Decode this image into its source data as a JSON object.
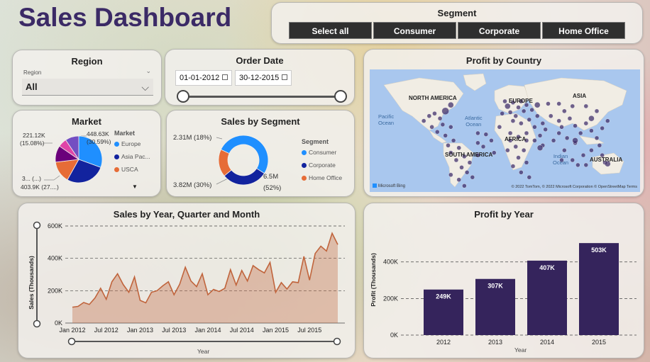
{
  "title": "Sales Dashboard",
  "segment_slicer": {
    "title": "Segment",
    "options": [
      "Select all",
      "Consumer",
      "Corporate",
      "Home Office"
    ]
  },
  "region": {
    "title": "Region",
    "small_label": "Region",
    "value": "All"
  },
  "order_date": {
    "title": "Order Date",
    "start": "01-01-2012",
    "end": "30-12-2015"
  },
  "market": {
    "title": "Market",
    "legend_title": "Market",
    "legend": [
      {
        "label": "Europe",
        "color": "#1f8fff"
      },
      {
        "label": "Asia Pac...",
        "color": "#12239e"
      },
      {
        "label": "USCA",
        "color": "#e66c37"
      }
    ],
    "labels": {
      "top_left": "221.12K",
      "top_left_pct": "(15.08%)",
      "top_right": "448.63K",
      "top_right_pct": "(30.59%)",
      "bottom_left_1": "3... (...)",
      "bottom_left_2": "403.9K (27....)"
    },
    "slices": [
      {
        "name": "Europe",
        "pct": 30.59,
        "color": "#1f8fff"
      },
      {
        "name": "Asia Pac...",
        "pct": 27.5,
        "color": "#12239e"
      },
      {
        "name": "USCA",
        "pct": 15.0,
        "color": "#e66c37"
      },
      {
        "name": "",
        "pct": 11.5,
        "color": "#6b007b"
      },
      {
        "name": "",
        "pct": 6.0,
        "color": "#e044a7"
      },
      {
        "name": "",
        "pct": 9.41,
        "color": "#744ec2"
      }
    ]
  },
  "sales_by_segment": {
    "title": "Sales by Segment",
    "legend_title": "Segment",
    "legend": [
      {
        "label": "Consumer",
        "color": "#1f8fff"
      },
      {
        "label": "Corporate",
        "color": "#12239e"
      },
      {
        "label": "Home Office",
        "color": "#e66c37"
      }
    ],
    "labels": {
      "top": "2.31M (18%)",
      "bottom": "3.82M (30%)",
      "right_1": "6.5M",
      "right_2": "(52%)"
    },
    "slices": [
      {
        "name": "Consumer",
        "pct": 52,
        "color": "#1f8fff"
      },
      {
        "name": "Corporate",
        "pct": 30,
        "color": "#12239e"
      },
      {
        "name": "Home Office",
        "pct": 18,
        "color": "#e66c37"
      }
    ]
  },
  "profit_by_country": {
    "title": "Profit by Country",
    "continents": [
      "NORTH AMERICA",
      "EUROPE",
      "ASIA",
      "AFRICA",
      "SOUTH AMERICA",
      "AUSTRALIA"
    ],
    "oceans": [
      {
        "line1": "Pacific",
        "line2": "Ocean"
      },
      {
        "line1": "Atlantic",
        "line2": "Ocean"
      },
      {
        "line1": "Indian",
        "line2": "Ocean"
      }
    ],
    "brand": "Microsoft Bing",
    "attribution": "© 2022 TomTom, © 2022 Microsoft Corporation  © OpenStreetMap  Terms",
    "bubble_color": "#3b2a66"
  },
  "sales_by_year_chart": {
    "title": "Sales by Year, Quarter and Month",
    "ylabel": "Sales (Thousands)",
    "xlabel": "Year",
    "yticks": [
      "600K",
      "400K",
      "200K",
      "0K"
    ],
    "xticks": [
      "Jan 2012",
      "Jul 2012",
      "Jan 2013",
      "Jul 2013",
      "Jan 2014",
      "Jul 2014",
      "Jan 2015",
      "Jul 2015"
    ]
  },
  "profit_by_year_chart": {
    "title": "Profit by Year",
    "ylabel": "Profit (Thousands)",
    "xlabel": "Year",
    "yticks": [
      "400K",
      "200K",
      "0K"
    ]
  },
  "chart_data": [
    {
      "type": "area",
      "title": "Sales by Year, Quarter and Month",
      "xlabel": "Year",
      "ylabel": "Sales (Thousands)",
      "ylim": [
        0,
        600
      ],
      "color": "#c0643c",
      "x": [
        "2012-01",
        "2012-02",
        "2012-03",
        "2012-04",
        "2012-05",
        "2012-06",
        "2012-07",
        "2012-08",
        "2012-09",
        "2012-10",
        "2012-11",
        "2012-12",
        "2013-01",
        "2013-02",
        "2013-03",
        "2013-04",
        "2013-05",
        "2013-06",
        "2013-07",
        "2013-08",
        "2013-09",
        "2013-10",
        "2013-11",
        "2013-12",
        "2014-01",
        "2014-02",
        "2014-03",
        "2014-04",
        "2014-05",
        "2014-06",
        "2014-07",
        "2014-08",
        "2014-09",
        "2014-10",
        "2014-11",
        "2014-12",
        "2015-01",
        "2015-02",
        "2015-03",
        "2015-04",
        "2015-05",
        "2015-06",
        "2015-07",
        "2015-08",
        "2015-09",
        "2015-10",
        "2015-11",
        "2015-12"
      ],
      "values": [
        98,
        103,
        127,
        115,
        155,
        215,
        147,
        255,
        305,
        238,
        190,
        285,
        140,
        125,
        190,
        200,
        230,
        255,
        175,
        240,
        345,
        260,
        225,
        305,
        175,
        208,
        195,
        215,
        330,
        235,
        325,
        260,
        355,
        330,
        310,
        375,
        190,
        250,
        210,
        255,
        250,
        412,
        265,
        430,
        475,
        445,
        555,
        485
      ]
    },
    {
      "type": "bar",
      "title": "Profit by Year",
      "xlabel": "Year",
      "ylabel": "Profit (Thousands)",
      "ylim": [
        0,
        550
      ],
      "color": "#35245c",
      "categories": [
        "2012",
        "2013",
        "2014",
        "2015"
      ],
      "values": [
        249,
        307,
        407,
        503
      ],
      "data_labels": [
        "249K",
        "307K",
        "407K",
        "503K"
      ]
    }
  ]
}
